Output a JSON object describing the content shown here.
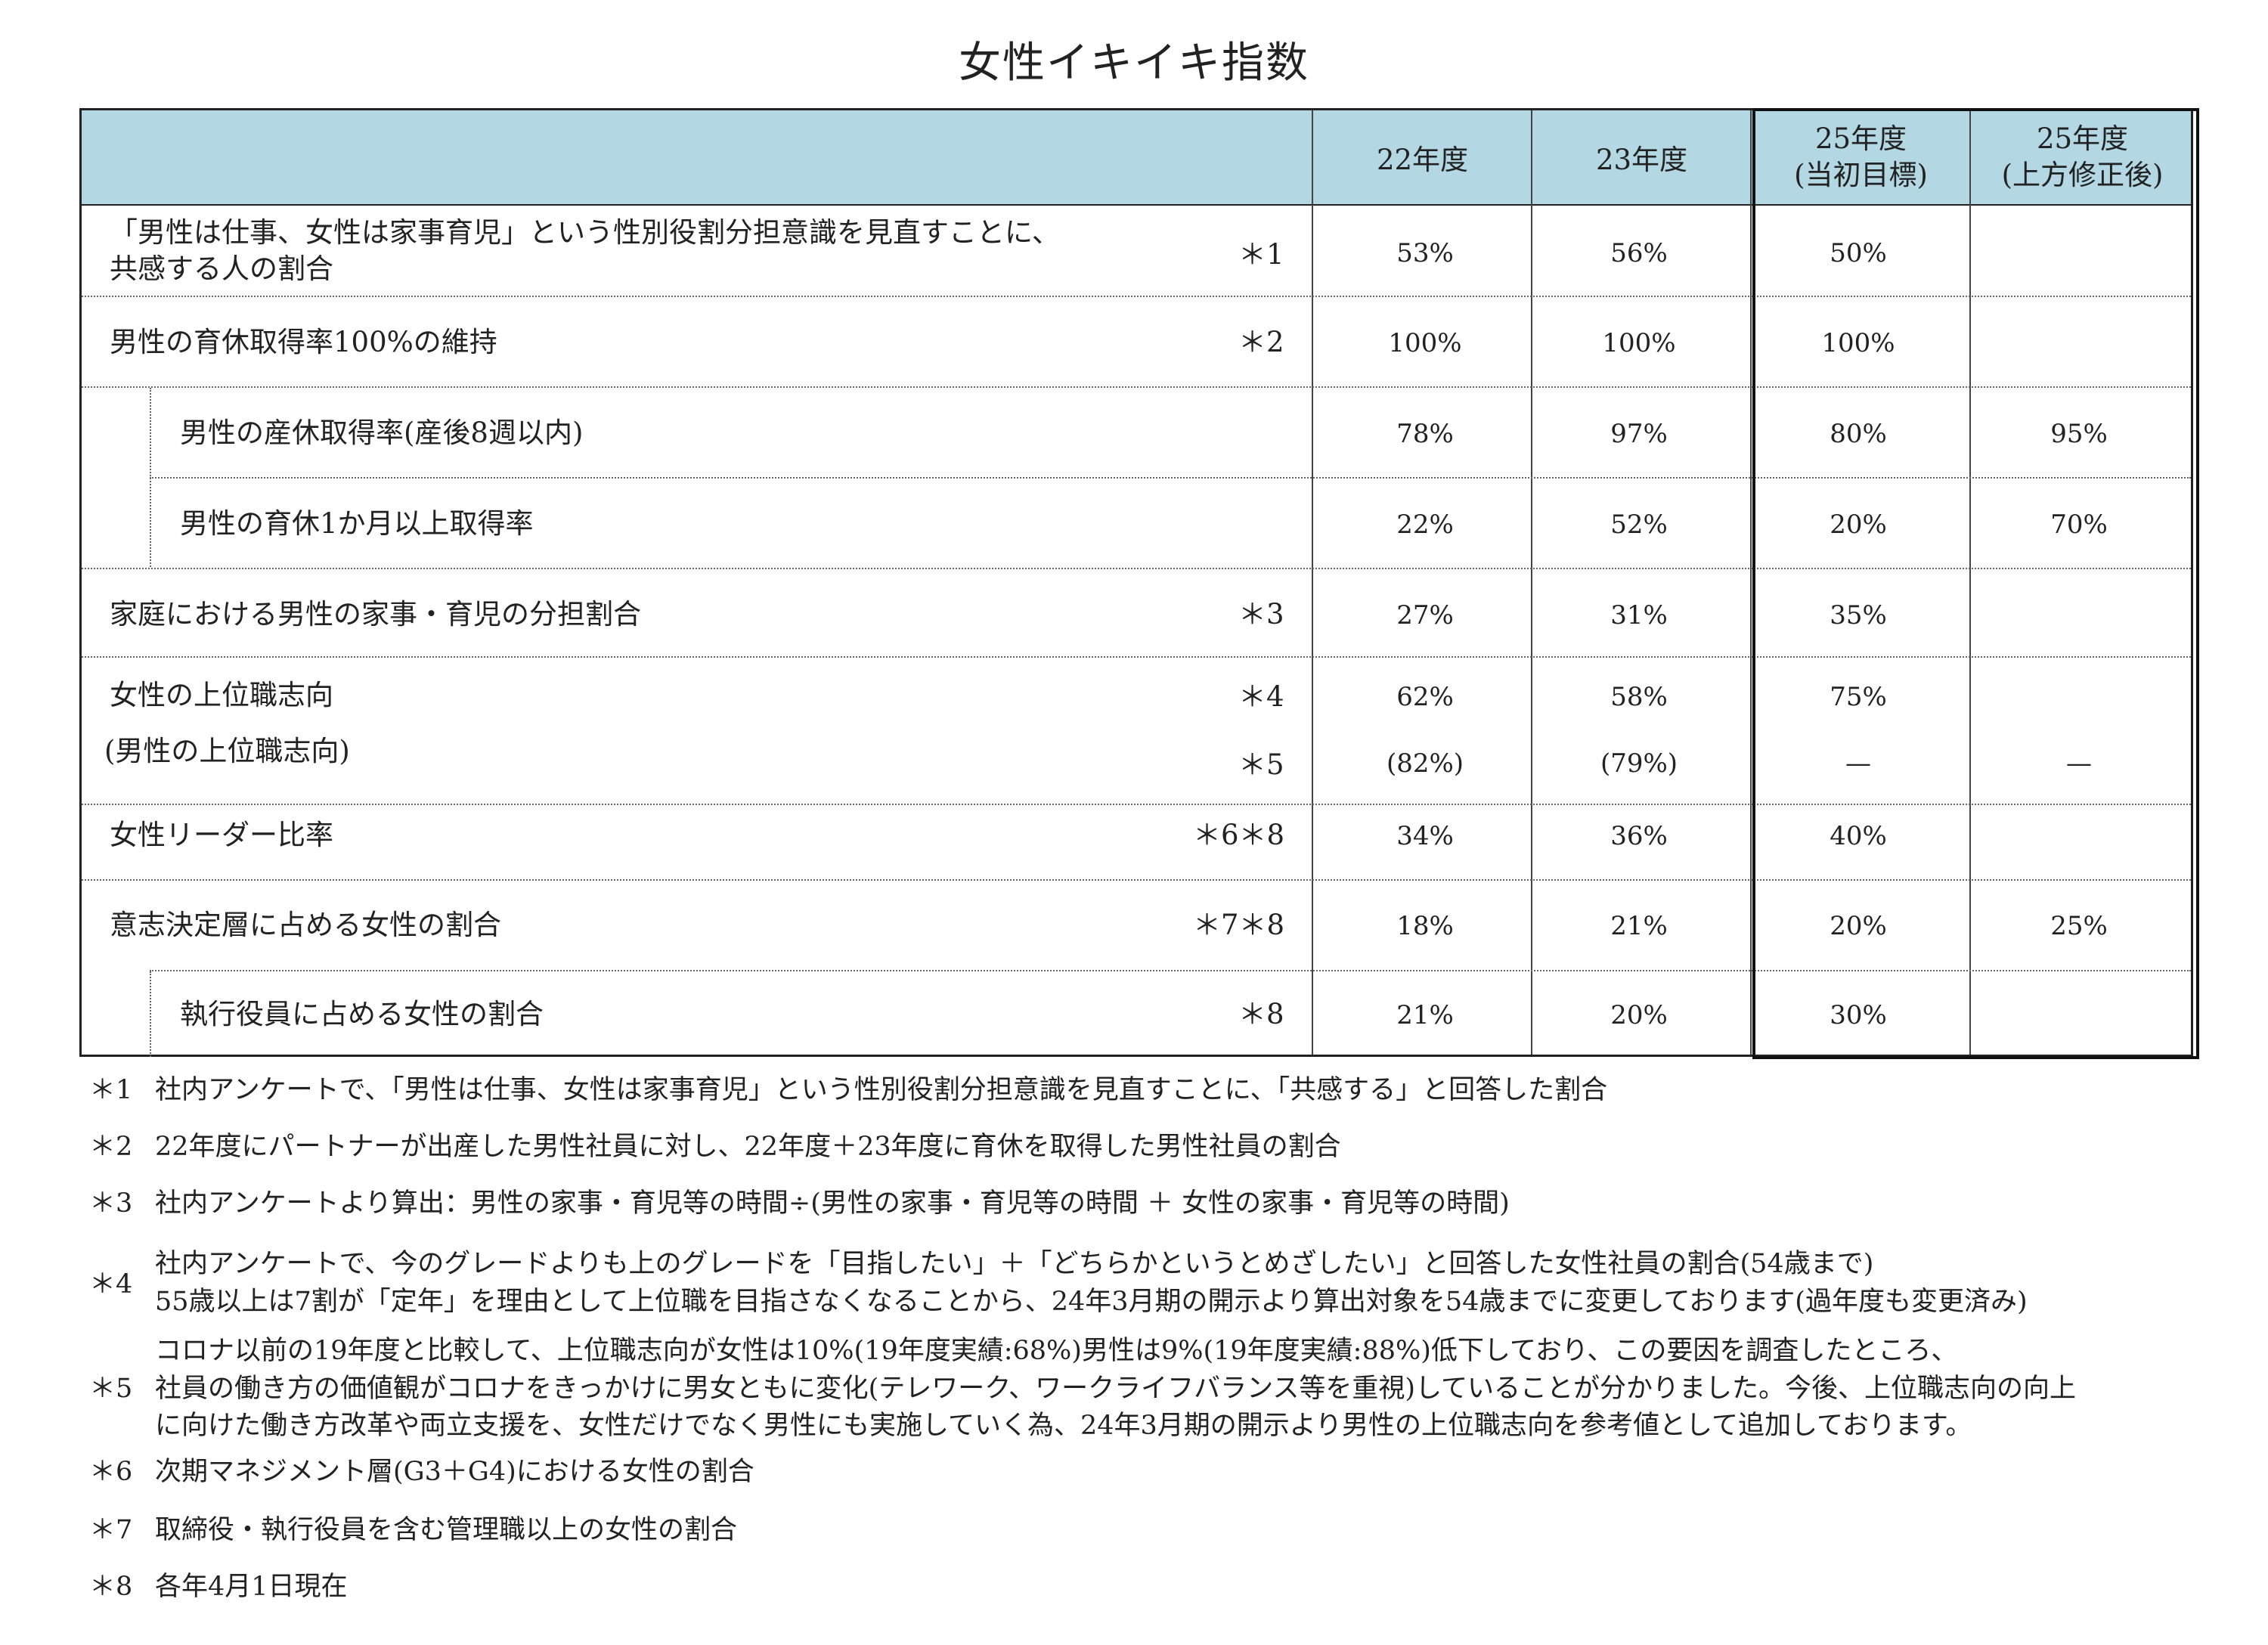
{
  "title": "女性イキイキ指数",
  "columns": [
    "22年度",
    "23年度",
    "25年度\n(当初目標)",
    "25年度\n(上方修正後)"
  ],
  "rows": [
    {
      "label": "「男性は仕事、女性は家事育児」という性別役割分担意識を見直すことに、\n共感する人の割合",
      "note": "＊1",
      "v22": "53%",
      "v23": "56%",
      "t25": "50%",
      "t25r": ""
    },
    {
      "label": "男性の育休取得率100%の維持",
      "note": "＊2",
      "v22": "100%",
      "v23": "100%",
      "t25": "100%",
      "t25r": ""
    },
    {
      "label": "男性の産休取得率(産後8週以内)",
      "note": "",
      "v22": "78%",
      "v23": "97%",
      "t25": "80%",
      "t25r": "95%"
    },
    {
      "label": "男性の育休1か月以上取得率",
      "note": "",
      "v22": "22%",
      "v23": "52%",
      "t25": "20%",
      "t25r": "70%"
    },
    {
      "label": "家庭における男性の家事・育児の分担割合",
      "note": "＊3",
      "v22": "27%",
      "v23": "31%",
      "t25": "35%",
      "t25r": ""
    },
    {
      "label": "女性の上位職志向",
      "note": "＊4",
      "v22": "62%",
      "v23": "58%",
      "t25": "75%",
      "t25r": ""
    },
    {
      "label": "(男性の上位職志向)",
      "note": "＊5",
      "v22": "(82%)",
      "v23": "(79%)",
      "t25": "—",
      "t25r": "—"
    },
    {
      "label": "女性リーダー比率",
      "note": "＊6＊8",
      "v22": "34%",
      "v23": "36%",
      "t25": "40%",
      "t25r": ""
    },
    {
      "label": "意志決定層に占める女性の割合",
      "note": "＊7＊8",
      "v22": "18%",
      "v23": "21%",
      "t25": "20%",
      "t25r": "25%"
    },
    {
      "label": "執行役員に占める女性の割合",
      "note": "＊8",
      "v22": "21%",
      "v23": "20%",
      "t25": "30%",
      "t25r": ""
    }
  ],
  "footnotes": [
    {
      "mark": "＊1",
      "text": "社内アンケートで、「男性は仕事、女性は家事育児」という性別役割分担意識を見直すことに、「共感する」と回答した割合"
    },
    {
      "mark": "＊2",
      "text": "22年度にパートナーが出産した男性社員に対し、22年度＋23年度に育休を取得した男性社員の割合"
    },
    {
      "mark": "＊3",
      "text": "社内アンケートより算出：男性の家事・育児等の時間÷(男性の家事・育児等の時間 ＋ 女性の家事・育児等の時間)"
    },
    {
      "mark": "＊4",
      "text": "社内アンケートで、今のグレードよりも上のグレードを「目指したい」＋「どちらかというとめざしたい」と回答した女性社員の割合(54歳まで)\n55歳以上は7割が「定年」を理由として上位職を目指さなくなることから、24年3月期の開示より算出対象を54歳までに変更しております(過年度も変更済み)"
    },
    {
      "mark": "＊5",
      "text": "コロナ以前の19年度と比較して、上位職志向が女性は10%(19年度実績:68%)男性は9%(19年度実績:88%)低下しており、この要因を調査したところ、\n社員の働き方の価値観がコロナをきっかけに男女ともに変化(テレワーク、ワークライフバランス等を重視)していることが分かりました。今後、上位職志向の向上\nに向けた働き方改革や両立支援を、女性だけでなく男性にも実施していく為、24年3月期の開示より男性の上位職志向を参考値として追加しております。"
    },
    {
      "mark": "＊6",
      "text": "次期マネジメント層(G3＋G4)における女性の割合"
    },
    {
      "mark": "＊7",
      "text": "取締役・執行役員を含む管理職以上の女性の割合"
    },
    {
      "mark": "＊8",
      "text": "各年4月1日現在"
    }
  ]
}
